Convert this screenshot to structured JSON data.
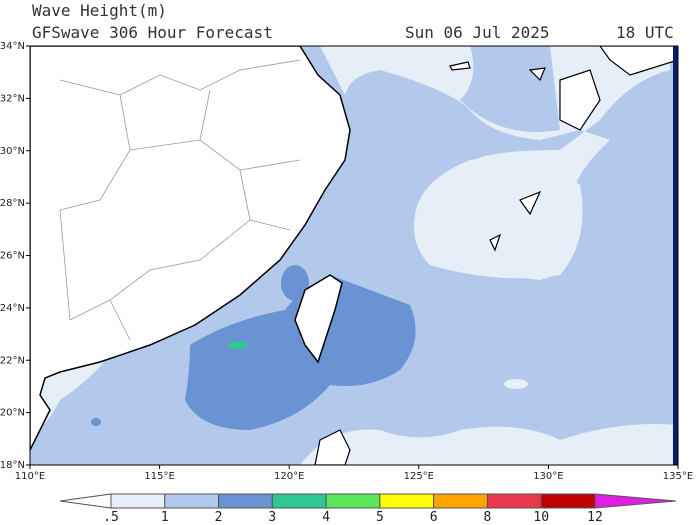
{
  "header": {
    "title": "Wave Height(m)",
    "subtitle": "GFSwave 306 Hour Forecast",
    "date": "Sun 06 Jul 2025",
    "time": "18 UTC"
  },
  "map": {
    "lat_labels": [
      "34°N",
      "32°N",
      "30°N",
      "28°N",
      "26°N",
      "24°N",
      "22°N",
      "20°N",
      "18°N"
    ],
    "lon_labels": [
      "110°E",
      "115°E",
      "120°E",
      "125°E",
      "130°E",
      "135°E"
    ]
  },
  "colorbar": {
    "labels": [
      ".5",
      "1",
      "2",
      "3",
      "4",
      "5",
      "6",
      "8",
      "10",
      "12"
    ],
    "colors": [
      "#ffffff",
      "#e6eef8",
      "#b3c9ec",
      "#6a93d4",
      "#2cc895",
      "#5ce65c",
      "#ffff00",
      "#ffa500",
      "#e8374b",
      "#c00000",
      "#e020e0"
    ]
  }
}
